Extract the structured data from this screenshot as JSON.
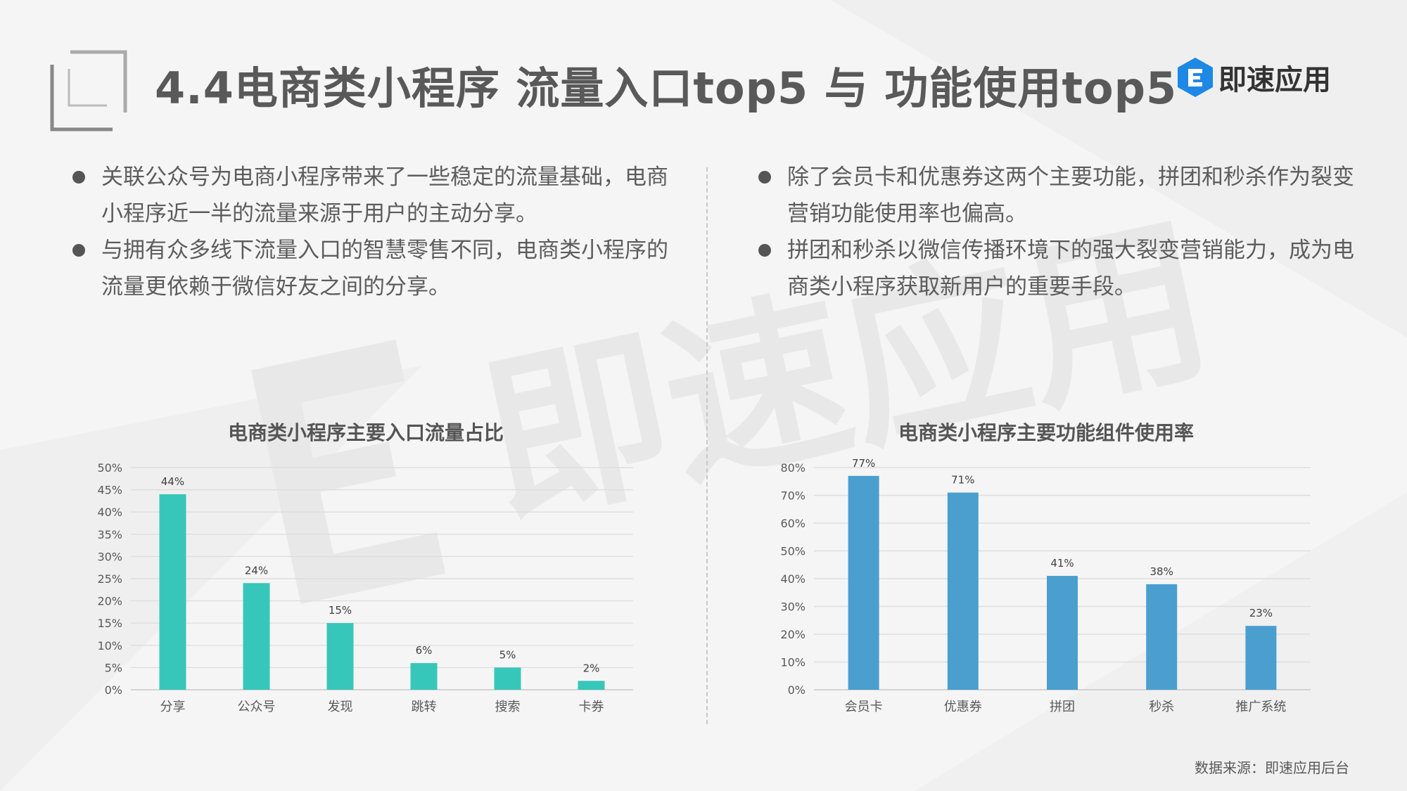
{
  "title": "4.4电商类小程序 流量入口top5 与 功能使用top5",
  "logo": {
    "text": "即速应用",
    "mark": "E",
    "color": "#1e88e5"
  },
  "watermark": {
    "text": "即速应用",
    "color": "#e8e8e8"
  },
  "left_bullets": [
    "关联公众号为电商小程序带来了一些稳定的流量基础，电商小程序近一半的流量来源于用户的主动分享。",
    "与拥有众多线下流量入口的智慧零售不同，电商类小程序的流量更依赖于微信好友之间的分享。"
  ],
  "right_bullets": [
    "除了会员卡和优惠券这两个主要功能，拼团和秒杀作为裂变营销功能使用率也偏高。",
    "拼团和秒杀以微信传播环境下的强大裂变营销能力，成为电商类小程序获取新用户的重要手段。"
  ],
  "source": "数据来源：即速应用后台",
  "chart_data": [
    {
      "type": "bar",
      "title": "电商类小程序主要入口流量占比",
      "categories": [
        "分享",
        "公众号",
        "发现",
        "跳转",
        "搜索",
        "卡券"
      ],
      "values": [
        44,
        24,
        15,
        6,
        5,
        2
      ],
      "labels": [
        "44%",
        "24%",
        "15%",
        "6%",
        "5%",
        "2%"
      ],
      "ylim": [
        0,
        50
      ],
      "ytick_step": 5,
      "ytick_suffix": "%",
      "color": "#37c6ba",
      "grid": true
    },
    {
      "type": "bar",
      "title": "电商类小程序主要功能组件使用率",
      "categories": [
        "会员卡",
        "优惠券",
        "拼团",
        "秒杀",
        "推广系统"
      ],
      "values": [
        77,
        71,
        41,
        38,
        23
      ],
      "labels": [
        "77%",
        "71%",
        "41%",
        "38%",
        "23%"
      ],
      "ylim": [
        0,
        80
      ],
      "ytick_step": 10,
      "ytick_suffix": "%",
      "color": "#4a9fcf",
      "grid": true
    }
  ]
}
